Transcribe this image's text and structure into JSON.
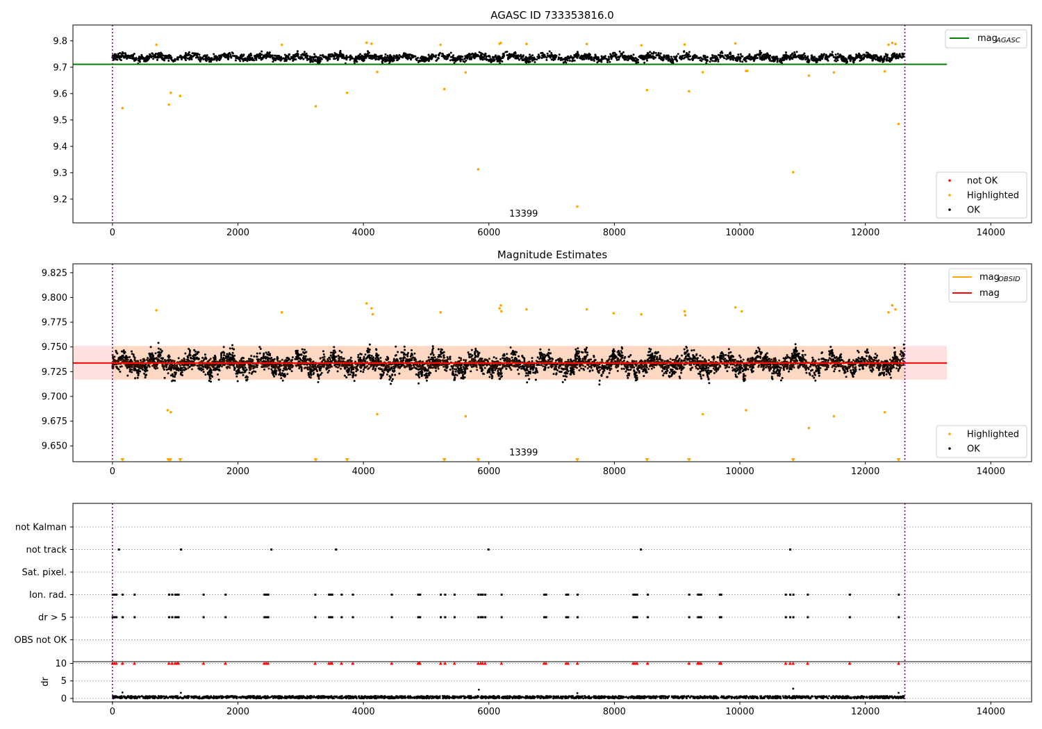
{
  "chart_data": [
    {
      "type": "scatter",
      "title": "AGASC ID 733353816.0",
      "xlabel": "",
      "ylabel": "",
      "xlim": [
        -630,
        14650
      ],
      "ylim": [
        9.11,
        9.86
      ],
      "xticks": [
        0,
        2000,
        4000,
        6000,
        8000,
        10000,
        12000,
        14000
      ],
      "yticks": [
        9.2,
        9.3,
        9.4,
        9.5,
        9.6,
        9.7,
        9.8
      ],
      "obs_label": "13399",
      "obs_label_x": 6310,
      "obs_boundaries_x": [
        0,
        12630
      ],
      "reference_line": {
        "name": "mag_AGASC",
        "y": 9.711,
        "x_range": [
          0,
          13300
        ],
        "color": "#008000"
      },
      "legend_top": [
        {
          "label": "mag",
          "sub": "AGASC",
          "color": "#008000"
        }
      ],
      "legend_bottom": [
        {
          "label": "not OK",
          "color": "#ff0000"
        },
        {
          "label": "Highlighted",
          "color": "#ffa500"
        },
        {
          "label": "OK",
          "color": "#000000"
        }
      ],
      "band": {
        "y_center": 9.737,
        "y_spread": 0.022,
        "x_range": [
          0,
          12620
        ]
      },
      "series": [
        {
          "name": "Highlighted",
          "color": "#ffa500",
          "points": [
            [
              160,
              9.545
            ],
            [
              900,
              9.558
            ],
            [
              930,
              9.603
            ],
            [
              1080,
              9.591
            ],
            [
              3240,
              9.552
            ],
            [
              3740,
              9.603
            ],
            [
              5290,
              9.617
            ],
            [
              5830,
              9.313
            ],
            [
              7410,
              9.172
            ],
            [
              8520,
              9.613
            ],
            [
              9190,
              9.609
            ],
            [
              10850,
              9.302
            ],
            [
              12530,
              9.485
            ],
            [
              700,
              9.785
            ],
            [
              2700,
              9.785
            ],
            [
              4050,
              9.793
            ],
            [
              4130,
              9.789
            ],
            [
              4220,
              9.682
            ],
            [
              5230,
              9.785
            ],
            [
              5630,
              9.68
            ],
            [
              6170,
              9.789
            ],
            [
              6190,
              9.792
            ],
            [
              6600,
              9.788
            ],
            [
              7560,
              9.788
            ],
            [
              8430,
              9.783
            ],
            [
              9120,
              9.786
            ],
            [
              9410,
              9.681
            ],
            [
              9930,
              9.79
            ],
            [
              10100,
              9.686
            ],
            [
              10120,
              9.686
            ],
            [
              11100,
              9.668
            ],
            [
              11500,
              9.68
            ],
            [
              12310,
              9.684
            ],
            [
              12370,
              9.785
            ],
            [
              12430,
              9.792
            ],
            [
              12480,
              9.788
            ]
          ]
        }
      ]
    },
    {
      "type": "scatter",
      "title": "Magnitude Estimates",
      "xlabel": "",
      "ylabel": "",
      "xlim": [
        -630,
        14650
      ],
      "ylim": [
        9.634,
        9.834
      ],
      "xticks": [
        0,
        2000,
        4000,
        6000,
        8000,
        10000,
        12000,
        14000
      ],
      "yticks": [
        9.65,
        9.675,
        9.7,
        9.725,
        9.75,
        9.775,
        9.8,
        9.825
      ],
      "obs_label": "13399",
      "obs_label_x": 6310,
      "obs_boundaries_x": [
        0,
        12630
      ],
      "shaded_band": {
        "y_low": 9.717,
        "y_high": 9.751,
        "x_range": [
          0,
          13300
        ]
      },
      "lines": [
        {
          "name": "mag_OBSID",
          "y": 9.7337,
          "color": "#ffa500"
        },
        {
          "name": "mag",
          "y": 9.7337,
          "color": "#ff0000"
        }
      ],
      "legend_top": [
        {
          "label": "mag",
          "sub": "OBSID",
          "color": "#ffa500"
        },
        {
          "label": "mag",
          "sub": "",
          "color": "#ff0000"
        }
      ],
      "legend_bottom": [
        {
          "label": "Highlighted",
          "color": "#ffa500"
        },
        {
          "label": "OK",
          "color": "#000000"
        }
      ],
      "band": {
        "y_center": 9.733,
        "y_spread": 0.016,
        "x_range": [
          0,
          12620
        ]
      },
      "series": [
        {
          "name": "Highlighted",
          "color": "#ffa500",
          "points": [
            [
              700,
              9.787
            ],
            [
              2700,
              9.785
            ],
            [
              4050,
              9.794
            ],
            [
              4130,
              9.789
            ],
            [
              4150,
              9.783
            ],
            [
              4220,
              9.682
            ],
            [
              880,
              9.686
            ],
            [
              930,
              9.684
            ],
            [
              5230,
              9.785
            ],
            [
              5630,
              9.68
            ],
            [
              6170,
              9.789
            ],
            [
              6190,
              9.792
            ],
            [
              6200,
              9.786
            ],
            [
              6600,
              9.788
            ],
            [
              7560,
              9.788
            ],
            [
              7990,
              9.784
            ],
            [
              8430,
              9.783
            ],
            [
              9120,
              9.786
            ],
            [
              9130,
              9.782
            ],
            [
              9410,
              9.682
            ],
            [
              9930,
              9.79
            ],
            [
              10030,
              9.786
            ],
            [
              10100,
              9.686
            ],
            [
              11100,
              9.668
            ],
            [
              11500,
              9.68
            ],
            [
              12310,
              9.684
            ],
            [
              12370,
              9.785
            ],
            [
              12430,
              9.792
            ],
            [
              12480,
              9.788
            ]
          ]
        },
        {
          "name": "Off-scale (low)",
          "color": "#ffa500",
          "x": [
            160,
            890,
            920,
            1080,
            3240,
            3740,
            5290,
            5830,
            7410,
            8520,
            9190,
            10850,
            12530
          ]
        }
      ]
    },
    {
      "type": "scatter",
      "title": "",
      "flag_rows": [
        "not Kalman",
        "not track",
        "Sat. pixel.",
        "Ion. rad.",
        "dr > 5",
        "OBS not OK"
      ],
      "flag_points": {
        "not track": [
          100,
          1090,
          2530,
          3560,
          5990,
          8420,
          10800
        ],
        "Ion. rad.": [
          0,
          30,
          60,
          160,
          350,
          900,
          950,
          1000,
          1030,
          1050,
          1450,
          1800,
          2420,
          2450,
          2480,
          3230,
          3450,
          3480,
          3500,
          3650,
          3830,
          4450,
          4870,
          4890,
          4900,
          5230,
          5300,
          5450,
          5830,
          5870,
          5900,
          5940,
          6200,
          6880,
          6910,
          7230,
          7260,
          7410,
          8300,
          8330,
          8360,
          8530,
          9190,
          9330,
          9350,
          9380,
          9680,
          9700,
          10730,
          10800,
          10850,
          11080,
          11750,
          12530
        ],
        "dr > 5": [
          0,
          30,
          60,
          160,
          350,
          900,
          950,
          1000,
          1030,
          1050,
          1450,
          1800,
          2420,
          2450,
          2480,
          3230,
          3450,
          3480,
          3500,
          3650,
          3830,
          4450,
          4870,
          4890,
          4900,
          5230,
          5300,
          5450,
          5830,
          5870,
          5900,
          5940,
          6200,
          6880,
          6910,
          7230,
          7260,
          7410,
          8300,
          8330,
          8360,
          8530,
          9190,
          9330,
          9350,
          9380,
          9680,
          9700,
          10730,
          10800,
          10850,
          11080,
          11750,
          12530
        ]
      },
      "xlim": [
        -630,
        14650
      ],
      "xticks": [
        0,
        2000,
        4000,
        6000,
        8000,
        10000,
        12000,
        14000
      ],
      "obs_boundaries_x": [
        0,
        12630
      ],
      "dr_panel": {
        "ylabel": "dr",
        "ylim": [
          -1,
          10.5
        ],
        "yticks": [
          0,
          5,
          10
        ],
        "cap_value": 10,
        "capped_color": "#ff0000",
        "baseline_spread": [
          0,
          0.7
        ],
        "outliers": [
          [
            160,
            1.7
          ],
          [
            5840,
            2.5
          ],
          [
            7410,
            1.5
          ],
          [
            10850,
            2.8
          ],
          [
            12530,
            1.6
          ],
          [
            1090,
            1.6
          ]
        ]
      }
    }
  ]
}
